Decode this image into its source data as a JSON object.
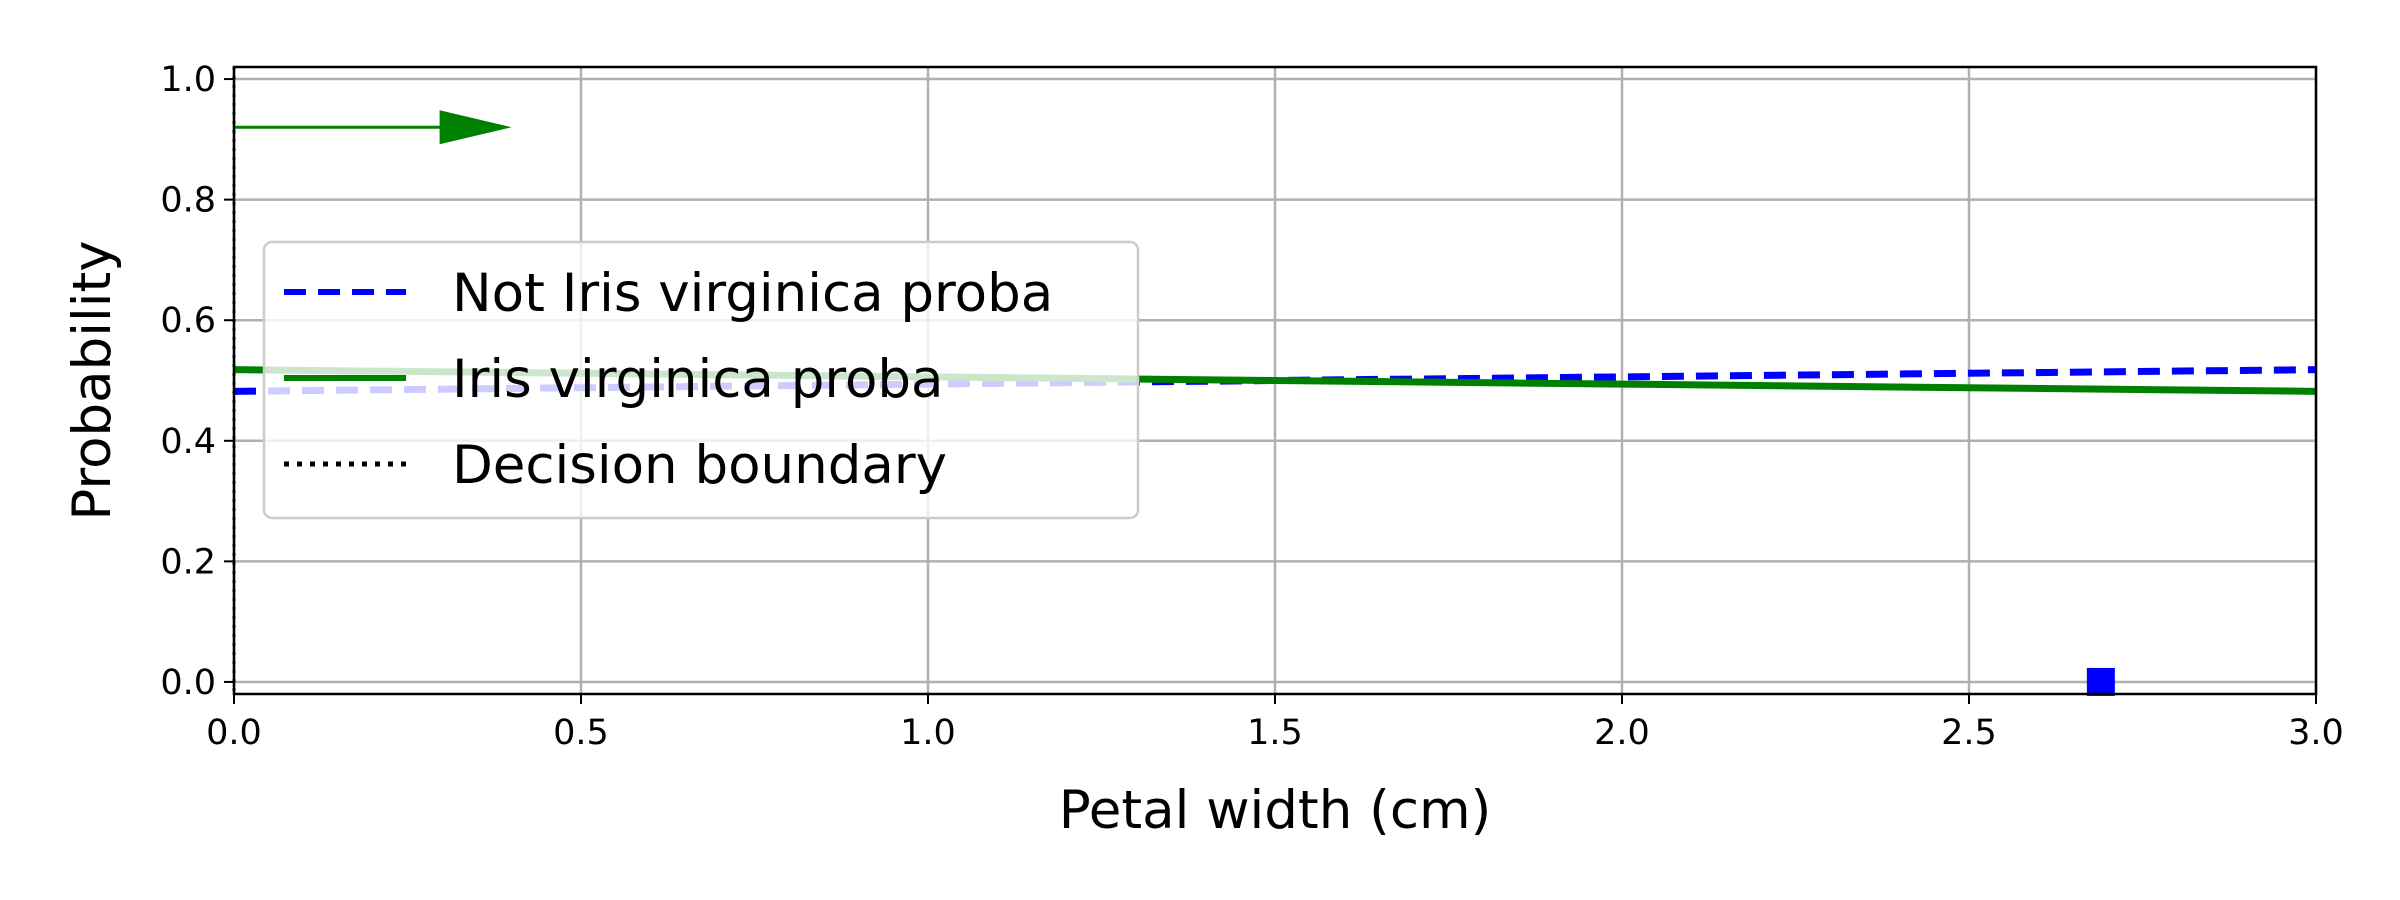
{
  "chart_data": {
    "type": "line",
    "title": "",
    "xlabel": "Petal width (cm)",
    "ylabel": "Probability",
    "xlim": [
      0.0,
      3.0
    ],
    "ylim": [
      -0.02,
      1.02
    ],
    "xticks": [
      0.0,
      0.5,
      1.0,
      1.5,
      2.0,
      2.5,
      3.0
    ],
    "xtick_labels": [
      "0.0",
      "0.5",
      "1.0",
      "1.5",
      "2.0",
      "2.5",
      "3.0"
    ],
    "yticks": [
      0.0,
      0.2,
      0.4,
      0.6,
      0.8,
      1.0
    ],
    "ytick_labels": [
      "0.0",
      "0.2",
      "0.4",
      "0.6",
      "0.8",
      "1.0"
    ],
    "grid": true,
    "legend_position": "center-left",
    "series": [
      {
        "name": "Not Iris virginica proba",
        "style": "dashed",
        "color": "#0000ff",
        "x": [
          0.0,
          0.5,
          1.0,
          1.5,
          2.0,
          2.5,
          3.0
        ],
        "y": [
          0.482,
          0.488,
          0.494,
          0.5,
          0.506,
          0.512,
          0.518
        ]
      },
      {
        "name": "Iris virginica proba",
        "style": "solid",
        "color": "#008000",
        "x": [
          0.0,
          0.5,
          1.0,
          1.5,
          2.0,
          2.5,
          3.0
        ],
        "y": [
          0.518,
          0.512,
          0.506,
          0.5,
          0.494,
          0.488,
          0.482
        ]
      }
    ],
    "decision_boundary": {
      "name": "Decision boundary",
      "style": "dotted",
      "color": "#000000",
      "x": 0.0
    },
    "markers": [
      {
        "shape": "square",
        "color": "#0000ff",
        "x": 2.69,
        "y": 0.0
      }
    ],
    "arrow": {
      "color": "#008000",
      "x_start": 0.0,
      "x_end": 0.4,
      "y": 0.92
    }
  }
}
